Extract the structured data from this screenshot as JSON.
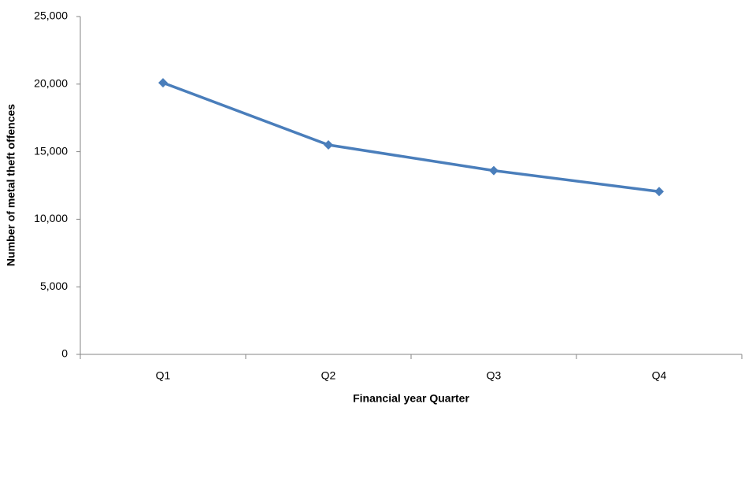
{
  "chart_data": {
    "type": "line",
    "x_label": "Financial year Quarter",
    "y_label": "Number of metal theft offences",
    "categories": [
      "Q1",
      "Q2",
      "Q3",
      "Q4"
    ],
    "series": [
      {
        "color": "#4a7ebb",
        "values": [
          20100,
          15500,
          13600,
          12050
        ]
      }
    ],
    "ylim": [
      0,
      25000
    ],
    "yticks": [
      0,
      {
        "value": 5000,
        "label": "5,000"
      },
      {
        "value": 10000,
        "label": "10,000"
      },
      {
        "value": 15000,
        "label": "15,000"
      },
      {
        "value": 20000,
        "label": "20,000"
      },
      {
        "value": 25000,
        "label": "25,000"
      }
    ],
    "grid": false
  }
}
